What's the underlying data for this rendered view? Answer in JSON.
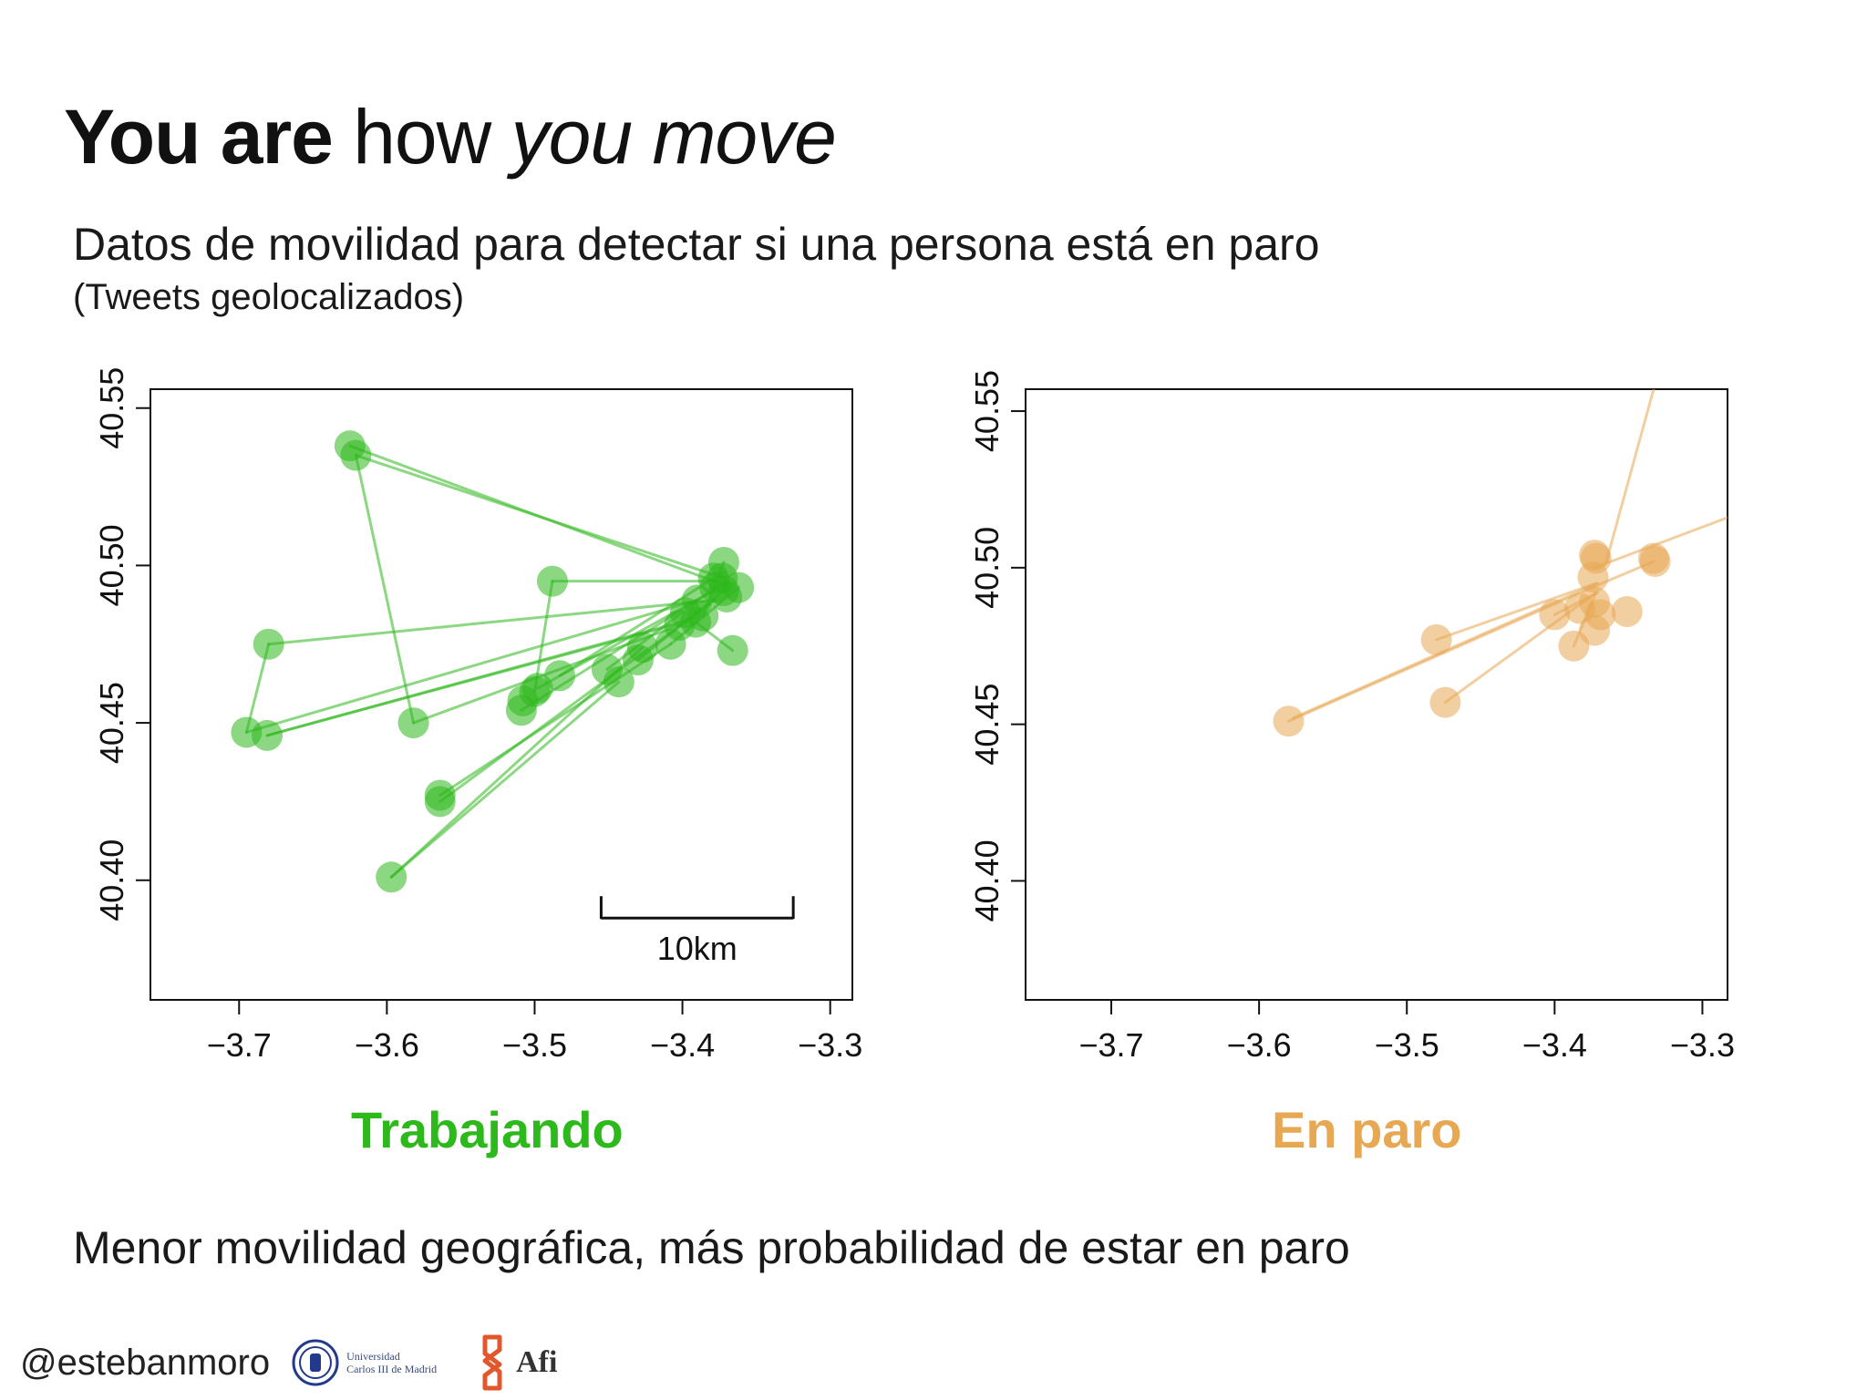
{
  "title": {
    "bold": "You are",
    "regular": "how",
    "italic": "you move"
  },
  "subtitle": "Datos de movilidad para detectar si una persona está en paro",
  "subnote": "(Tweets geolocalizados)",
  "conclusion": "Menor movilidad geográfica, más probabilidad de estar en paro",
  "footer": {
    "handle": "@estebanmoro",
    "uc3m_line1": "Universidad",
    "uc3m_line2": "Carlos III de Madrid",
    "afi": "Afi"
  },
  "colors": {
    "working": "#2db81c",
    "unemployed": "#e7a853"
  },
  "chart_data": [
    {
      "type": "scatter",
      "label": "Trabajando",
      "color": "#2db81c",
      "xlim": [
        -3.76,
        -3.285
      ],
      "ylim": [
        40.362,
        40.556
      ],
      "xticks": [
        -3.7,
        -3.6,
        -3.5,
        -3.4,
        -3.3
      ],
      "xtick_labels": [
        "−3.7",
        "−3.6",
        "−3.5",
        "−3.4",
        "−3.3"
      ],
      "yticks": [
        40.4,
        40.45,
        40.5,
        40.55
      ],
      "ytick_labels": [
        "40.40",
        "40.45",
        "40.50",
        "40.55"
      ],
      "scale_bar": {
        "from": -3.455,
        "to": -3.325,
        "y": 40.388,
        "label": "10km"
      },
      "points": [
        [
          -3.625,
          40.538
        ],
        [
          -3.621,
          40.535
        ],
        [
          -3.68,
          40.475
        ],
        [
          -3.695,
          40.447
        ],
        [
          -3.681,
          40.446
        ],
        [
          -3.582,
          40.45
        ],
        [
          -3.564,
          40.427
        ],
        [
          -3.564,
          40.425
        ],
        [
          -3.597,
          40.401
        ],
        [
          -3.488,
          40.495
        ],
        [
          -3.509,
          40.454
        ],
        [
          -3.508,
          40.457
        ],
        [
          -3.5,
          40.46
        ],
        [
          -3.498,
          40.461
        ],
        [
          -3.483,
          40.465
        ],
        [
          -3.451,
          40.467
        ],
        [
          -3.443,
          40.463
        ],
        [
          -3.43,
          40.47
        ],
        [
          -3.427,
          40.474
        ],
        [
          -3.408,
          40.475
        ],
        [
          -3.402,
          40.481
        ],
        [
          -3.398,
          40.485
        ],
        [
          -3.391,
          40.482
        ],
        [
          -3.386,
          40.484
        ],
        [
          -3.39,
          40.489
        ],
        [
          -3.378,
          40.493
        ],
        [
          -3.379,
          40.496
        ],
        [
          -3.372,
          40.501
        ],
        [
          -3.373,
          40.496
        ],
        [
          -3.372,
          40.492
        ],
        [
          -3.362,
          40.493
        ],
        [
          -3.366,
          40.473
        ],
        [
          -3.37,
          40.49
        ]
      ],
      "segments": [
        [
          [
            -3.621,
            40.535
          ],
          [
            -3.372,
            40.496
          ]
        ],
        [
          [
            -3.625,
            40.538
          ],
          [
            -3.373,
            40.494
          ]
        ],
        [
          [
            -3.621,
            40.535
          ],
          [
            -3.582,
            40.45
          ]
        ],
        [
          [
            -3.68,
            40.475
          ],
          [
            -3.695,
            40.447
          ]
        ],
        [
          [
            -3.68,
            40.475
          ],
          [
            -3.378,
            40.489
          ]
        ],
        [
          [
            -3.695,
            40.447
          ],
          [
            -3.39,
            40.489
          ]
        ],
        [
          [
            -3.681,
            40.446
          ],
          [
            -3.386,
            40.484
          ]
        ],
        [
          [
            -3.681,
            40.446
          ],
          [
            -3.398,
            40.482
          ]
        ],
        [
          [
            -3.582,
            40.45
          ],
          [
            -3.402,
            40.481
          ]
        ],
        [
          [
            -3.564,
            40.427
          ],
          [
            -3.408,
            40.475
          ]
        ],
        [
          [
            -3.564,
            40.425
          ],
          [
            -3.378,
            40.489
          ]
        ],
        [
          [
            -3.597,
            40.401
          ],
          [
            -3.427,
            40.474
          ]
        ],
        [
          [
            -3.597,
            40.401
          ],
          [
            -3.443,
            40.463
          ]
        ],
        [
          [
            -3.488,
            40.495
          ],
          [
            -3.372,
            40.495
          ]
        ],
        [
          [
            -3.488,
            40.495
          ],
          [
            -3.5,
            40.46
          ]
        ],
        [
          [
            -3.509,
            40.454
          ],
          [
            -3.39,
            40.489
          ]
        ],
        [
          [
            -3.498,
            40.461
          ],
          [
            -3.379,
            40.492
          ]
        ],
        [
          [
            -3.483,
            40.465
          ],
          [
            -3.372,
            40.498
          ]
        ],
        [
          [
            -3.451,
            40.467
          ],
          [
            -3.378,
            40.493
          ]
        ],
        [
          [
            -3.43,
            40.47
          ],
          [
            -3.372,
            40.492
          ]
        ],
        [
          [
            -3.408,
            40.475
          ],
          [
            -3.362,
            40.493
          ]
        ],
        [
          [
            -3.391,
            40.482
          ],
          [
            -3.366,
            40.473
          ]
        ],
        [
          [
            -3.386,
            40.484
          ],
          [
            -3.372,
            40.501
          ]
        ]
      ]
    },
    {
      "type": "scatter",
      "label": "En paro",
      "color": "#e7a853",
      "xlim": [
        -3.758,
        -3.283
      ],
      "ylim": [
        40.362,
        40.557
      ],
      "xticks": [
        -3.7,
        -3.6,
        -3.5,
        -3.4,
        -3.3
      ],
      "xtick_labels": [
        "−3.7",
        "−3.6",
        "−3.5",
        "−3.4",
        "−3.3"
      ],
      "yticks": [
        40.4,
        40.45,
        40.5,
        40.55
      ],
      "ytick_labels": [
        "40.40",
        "40.45",
        "40.50",
        "40.55"
      ],
      "points": [
        [
          -3.58,
          40.451
        ],
        [
          -3.48,
          40.477
        ],
        [
          -3.474,
          40.457
        ],
        [
          -3.4,
          40.485
        ],
        [
          -3.387,
          40.475
        ],
        [
          -3.383,
          40.487
        ],
        [
          -3.373,
          40.48
        ],
        [
          -3.369,
          40.485
        ],
        [
          -3.351,
          40.486
        ],
        [
          -3.373,
          40.489
        ],
        [
          -3.374,
          40.497
        ],
        [
          -3.373,
          40.504
        ],
        [
          -3.372,
          40.503
        ],
        [
          -3.333,
          40.503
        ],
        [
          -3.332,
          40.502
        ]
      ],
      "segments": [
        [
          [
            -3.58,
            40.451
          ],
          [
            -3.373,
            40.494
          ]
        ],
        [
          [
            -3.577,
            40.452
          ],
          [
            -3.371,
            40.495
          ]
        ],
        [
          [
            -3.48,
            40.477
          ],
          [
            -3.372,
            40.495
          ]
        ],
        [
          [
            -3.474,
            40.457
          ],
          [
            -3.372,
            40.492
          ]
        ],
        [
          [
            -3.387,
            40.475
          ],
          [
            -3.372,
            40.492
          ]
        ],
        [
          [
            -3.4,
            40.485
          ],
          [
            -3.371,
            40.492
          ]
        ],
        [
          [
            -3.373,
            40.494
          ],
          [
            -3.333,
            40.502
          ]
        ],
        [
          [
            -3.373,
            40.5
          ],
          [
            -3.283,
            40.516
          ]
        ],
        [
          [
            -3.365,
            40.502
          ],
          [
            -3.333,
            40.557
          ]
        ]
      ]
    }
  ]
}
